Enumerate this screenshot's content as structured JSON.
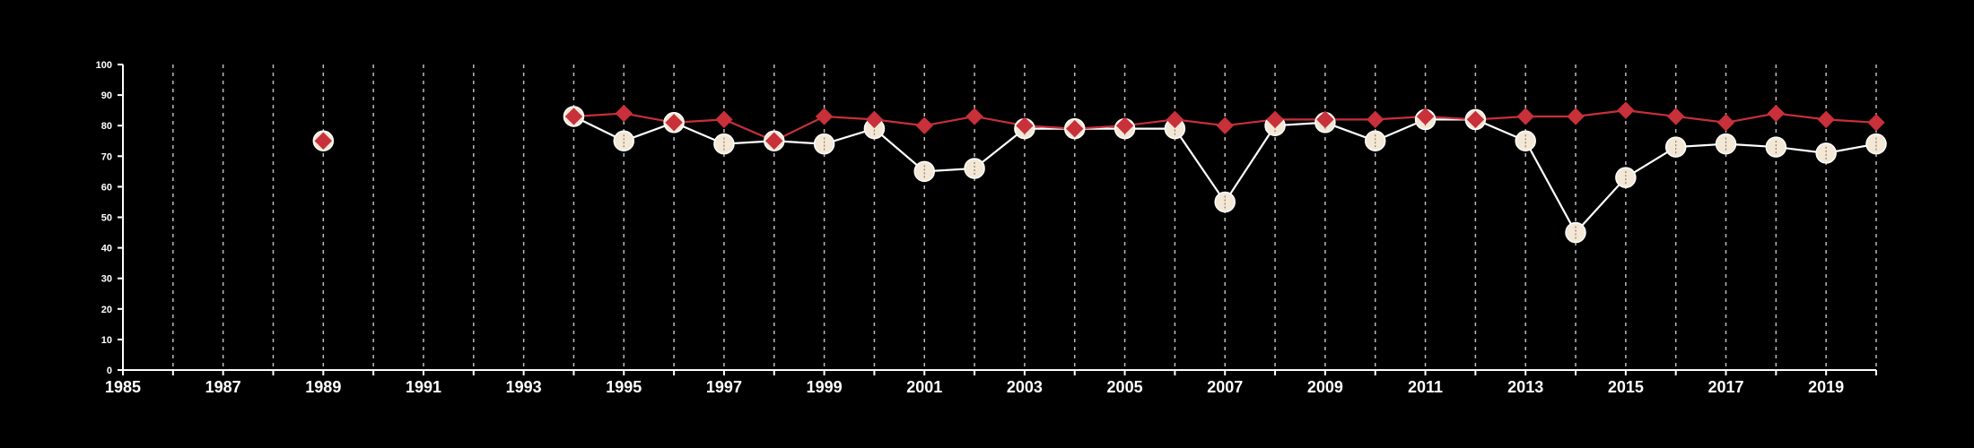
{
  "colors": {
    "background": "#000000",
    "axis": "#ffffff",
    "grid": "#bbbbbb",
    "series_a_marker_fill": "#f3e7d6",
    "series_a_line": "#ffffff",
    "series_b": "#c8303a"
  },
  "chart_data": {
    "type": "line",
    "title": "",
    "xlabel": "",
    "ylabel": "",
    "xlim": [
      1985,
      2020
    ],
    "ylim": [
      0,
      100
    ],
    "yticks": [
      0,
      10,
      20,
      30,
      40,
      50,
      60,
      70,
      80,
      90,
      100
    ],
    "xticks_labeled": [
      1985,
      1987,
      1989,
      1991,
      1993,
      1995,
      1997,
      1999,
      2001,
      2003,
      2005,
      2007,
      2009,
      2011,
      2013,
      2015,
      2017,
      2019
    ],
    "grid": "vertical dashed at each year",
    "legend": "none",
    "series": [
      {
        "marker": "circle",
        "points": [
          [
            1989,
            75
          ],
          [
            1994,
            83
          ],
          [
            1995,
            75
          ],
          [
            1996,
            81
          ],
          [
            1997,
            74
          ],
          [
            1998,
            75
          ],
          [
            1999,
            74
          ],
          [
            2000,
            79
          ],
          [
            2001,
            65
          ],
          [
            2002,
            66
          ],
          [
            2003,
            79
          ],
          [
            2004,
            79
          ],
          [
            2005,
            79
          ],
          [
            2006,
            79
          ],
          [
            2007,
            55
          ],
          [
            2008,
            80
          ],
          [
            2009,
            81
          ],
          [
            2010,
            75
          ],
          [
            2011,
            82
          ],
          [
            2012,
            82
          ],
          [
            2013,
            75
          ],
          [
            2014,
            45
          ],
          [
            2015,
            63
          ],
          [
            2016,
            73
          ],
          [
            2017,
            74
          ],
          [
            2018,
            73
          ],
          [
            2019,
            71
          ],
          [
            2020,
            74
          ]
        ]
      },
      {
        "marker": "diamond",
        "points": [
          [
            1989,
            75
          ],
          [
            1994,
            83
          ],
          [
            1995,
            84
          ],
          [
            1996,
            81
          ],
          [
            1997,
            82
          ],
          [
            1998,
            75
          ],
          [
            1999,
            83
          ],
          [
            2000,
            82
          ],
          [
            2001,
            80
          ],
          [
            2002,
            83
          ],
          [
            2003,
            80
          ],
          [
            2004,
            79
          ],
          [
            2005,
            80
          ],
          [
            2006,
            82
          ],
          [
            2007,
            80
          ],
          [
            2008,
            82
          ],
          [
            2009,
            82
          ],
          [
            2010,
            82
          ],
          [
            2011,
            83
          ],
          [
            2012,
            82
          ],
          [
            2013,
            83
          ],
          [
            2014,
            83
          ],
          [
            2015,
            85
          ],
          [
            2016,
            83
          ],
          [
            2017,
            81
          ],
          [
            2018,
            84
          ],
          [
            2019,
            82
          ],
          [
            2020,
            81
          ]
        ]
      }
    ]
  }
}
